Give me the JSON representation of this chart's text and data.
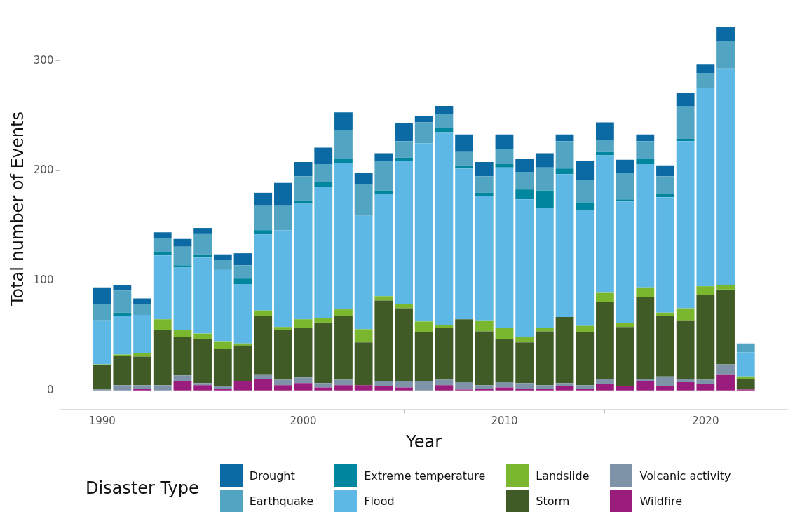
{
  "chart_data": {
    "type": "bar",
    "stacked": true,
    "xlabel": "Year",
    "ylabel": "Total number of Events",
    "legend_title": "Disaster Type",
    "legend": "bottom",
    "grid": false,
    "x": [
      1990,
      1991,
      1992,
      1993,
      1994,
      1995,
      1996,
      1997,
      1998,
      1999,
      2000,
      2001,
      2002,
      2003,
      2004,
      2005,
      2006,
      2007,
      2008,
      2009,
      2010,
      2011,
      2012,
      2013,
      2014,
      2015,
      2016,
      2017,
      2018,
      2019,
      2020,
      2021,
      2022
    ],
    "xlim": [
      1987.9,
      2024.1
    ],
    "xticks": [
      1990,
      2000,
      2010,
      2020
    ],
    "ylim": [
      -16.6,
      347.6
    ],
    "yticks": [
      0,
      100,
      200,
      300
    ],
    "series": [
      {
        "name": "Wildfire",
        "color": "#9a1c7c",
        "values": [
          0,
          0,
          2,
          0,
          9,
          5,
          2,
          9,
          11,
          5,
          7,
          3,
          5,
          5,
          4,
          3,
          0,
          5,
          1,
          2,
          3,
          2,
          2,
          4,
          2,
          6,
          4,
          9,
          4,
          8,
          6,
          15,
          1
        ]
      },
      {
        "name": "Volcanic activity",
        "color": "#7e92a8",
        "values": [
          1,
          5,
          3,
          5,
          5,
          2,
          2,
          0,
          4,
          5,
          5,
          4,
          5,
          0,
          5,
          6,
          9,
          5,
          7,
          3,
          5,
          5,
          3,
          3,
          3,
          5,
          0,
          2,
          9,
          3,
          4,
          9,
          0
        ]
      },
      {
        "name": "Storm",
        "color": "#405b26",
        "values": [
          22,
          27,
          26,
          50,
          35,
          40,
          34,
          32,
          53,
          45,
          45,
          55,
          58,
          39,
          73,
          66,
          44,
          47,
          57,
          49,
          39,
          37,
          49,
          60,
          48,
          70,
          54,
          74,
          55,
          53,
          77,
          68,
          10
        ]
      },
      {
        "name": "Landslide",
        "color": "#7ab62e",
        "values": [
          1,
          1,
          3,
          10,
          6,
          5,
          7,
          2,
          5,
          3,
          8,
          4,
          6,
          12,
          4,
          4,
          10,
          3,
          0,
          10,
          10,
          5,
          3,
          0,
          6,
          8,
          4,
          9,
          3,
          11,
          8,
          4,
          2
        ]
      },
      {
        "name": "Flood",
        "color": "#5db8e6",
        "values": [
          40,
          35,
          35,
          58,
          57,
          69,
          65,
          54,
          69,
          88,
          105,
          119,
          133,
          103,
          93,
          130,
          162,
          175,
          137,
          113,
          146,
          125,
          109,
          130,
          105,
          125,
          110,
          112,
          105,
          152,
          180,
          197,
          22
        ]
      },
      {
        "name": "Extreme temperature",
        "color": "#00869f",
        "values": [
          0,
          3,
          0,
          3,
          2,
          3,
          1,
          5,
          4,
          0,
          3,
          5,
          4,
          0,
          3,
          3,
          0,
          4,
          3,
          3,
          3,
          9,
          16,
          5,
          7,
          3,
          2,
          5,
          3,
          2,
          0,
          0,
          0
        ]
      },
      {
        "name": "Earthquake",
        "color": "#51a5c2",
        "values": [
          15,
          20,
          10,
          13,
          17,
          19,
          8,
          12,
          22,
          22,
          22,
          16,
          26,
          29,
          27,
          15,
          19,
          13,
          12,
          15,
          14,
          16,
          21,
          25,
          21,
          11,
          24,
          16,
          16,
          30,
          14,
          25,
          8
        ]
      },
      {
        "name": "Drought",
        "color": "#0b6aa3",
        "values": [
          15,
          5,
          5,
          5,
          7,
          5,
          5,
          11,
          12,
          21,
          13,
          15,
          16,
          10,
          7,
          16,
          6,
          7,
          16,
          13,
          13,
          12,
          13,
          6,
          17,
          16,
          12,
          6,
          10,
          12,
          8,
          13,
          0
        ]
      }
    ]
  }
}
